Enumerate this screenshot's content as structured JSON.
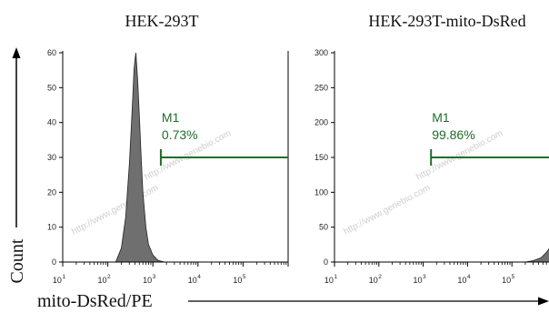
{
  "chart_data": [
    {
      "type": "area",
      "title": "HEK-293T",
      "ylabel": "Count",
      "xlabel": "mito-DsRed/PE",
      "xscale": "log",
      "xlim": [
        10,
        1000000
      ],
      "ylim": [
        0,
        60
      ],
      "y_ticks": [
        "0",
        "10",
        "20",
        "30",
        "40",
        "50",
        "60"
      ],
      "x_ticks": [
        "1",
        "2",
        "3",
        "4",
        "5"
      ],
      "x_tick_base": "10",
      "histogram": {
        "x": [
          150,
          200,
          250,
          300,
          330,
          360,
          380,
          400,
          420,
          440,
          460,
          500,
          550,
          600,
          700,
          800,
          1000,
          1300,
          1800
        ],
        "y": [
          0,
          4,
          13,
          28,
          38,
          48,
          55,
          58,
          60,
          56,
          52,
          42,
          30,
          20,
          10,
          5,
          2,
          0.5,
          0
        ]
      },
      "gate": {
        "name": "M1",
        "value": "0.73%",
        "x_start": 1500,
        "x_end": 1000000,
        "y": 30
      },
      "watermark": "http://www.genebio.com",
      "colors": {
        "fill": "#6f6f6f",
        "gate": "#1f6e2a"
      }
    },
    {
      "type": "area",
      "title": "HEK-293T-mito-DsRed",
      "xscale": "log",
      "xlim": [
        10,
        1000000
      ],
      "ylim": [
        0,
        300
      ],
      "y_ticks": [
        "0",
        "50",
        "100",
        "150",
        "200",
        "250",
        "300"
      ],
      "x_ticks": [
        "1",
        "2",
        "3",
        "4",
        "5"
      ],
      "x_tick_base": "10",
      "histogram": {
        "x": [
          200000,
          300000,
          450000,
          600000,
          800000,
          1000000
        ],
        "y": [
          0,
          2,
          6,
          14,
          25,
          32
        ]
      },
      "gate": {
        "name": "M1",
        "value": "99.86%",
        "x_start": 1500,
        "x_end": 1000000,
        "y": 150
      },
      "watermark": "http://www.genebio.com",
      "colors": {
        "fill": "#6f6f6f",
        "gate": "#1f6e2a"
      }
    }
  ]
}
